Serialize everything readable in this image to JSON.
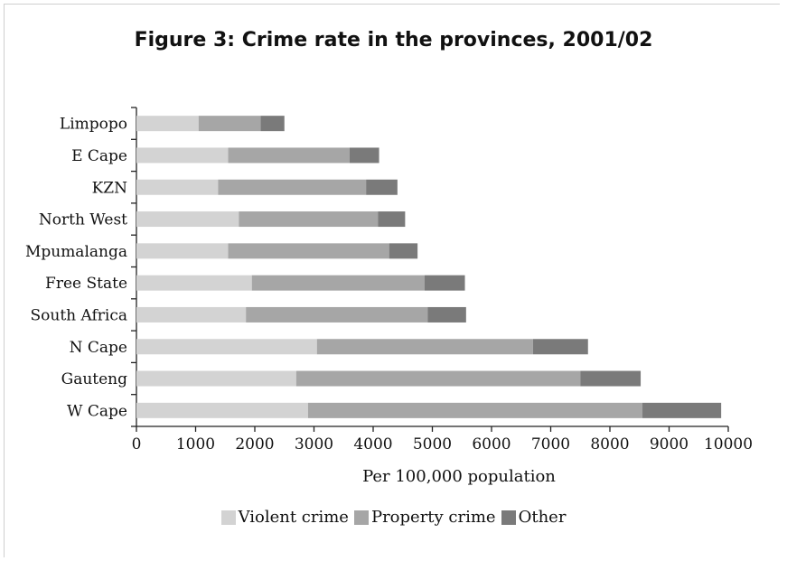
{
  "chart_data": {
    "type": "bar",
    "orientation": "horizontal",
    "stacked": true,
    "title": "Figure 3: Crime rate in the provinces, 2001/02",
    "xlabel": "Per 100,000 population",
    "ylabel": "",
    "xlim": [
      0,
      10000
    ],
    "xticks": [
      "0",
      "1000",
      "2000",
      "3000",
      "4000",
      "5000",
      "6000",
      "7000",
      "8000",
      "9000",
      "10000"
    ],
    "grid": false,
    "legend_position": "bottom",
    "categories": [
      "Limpopo",
      "E Cape",
      "KZN",
      "North West",
      "Mpumalanga",
      "Free State",
      "South Africa",
      "N Cape",
      "Gauteng",
      "W Cape"
    ],
    "series": [
      {
        "name": "Violent crime",
        "color": "#d3d3d3",
        "values": [
          1050,
          1550,
          1380,
          1730,
          1550,
          1950,
          1850,
          3050,
          2700,
          2900
        ]
      },
      {
        "name": "Property crime",
        "color": "#a6a6a6",
        "values": [
          1050,
          2050,
          2500,
          2350,
          2720,
          2920,
          3070,
          3650,
          4800,
          5650
        ]
      },
      {
        "name": "Other",
        "color": "#7a7a7a",
        "values": [
          400,
          500,
          530,
          460,
          480,
          680,
          650,
          930,
          1020,
          1330
        ]
      }
    ]
  }
}
